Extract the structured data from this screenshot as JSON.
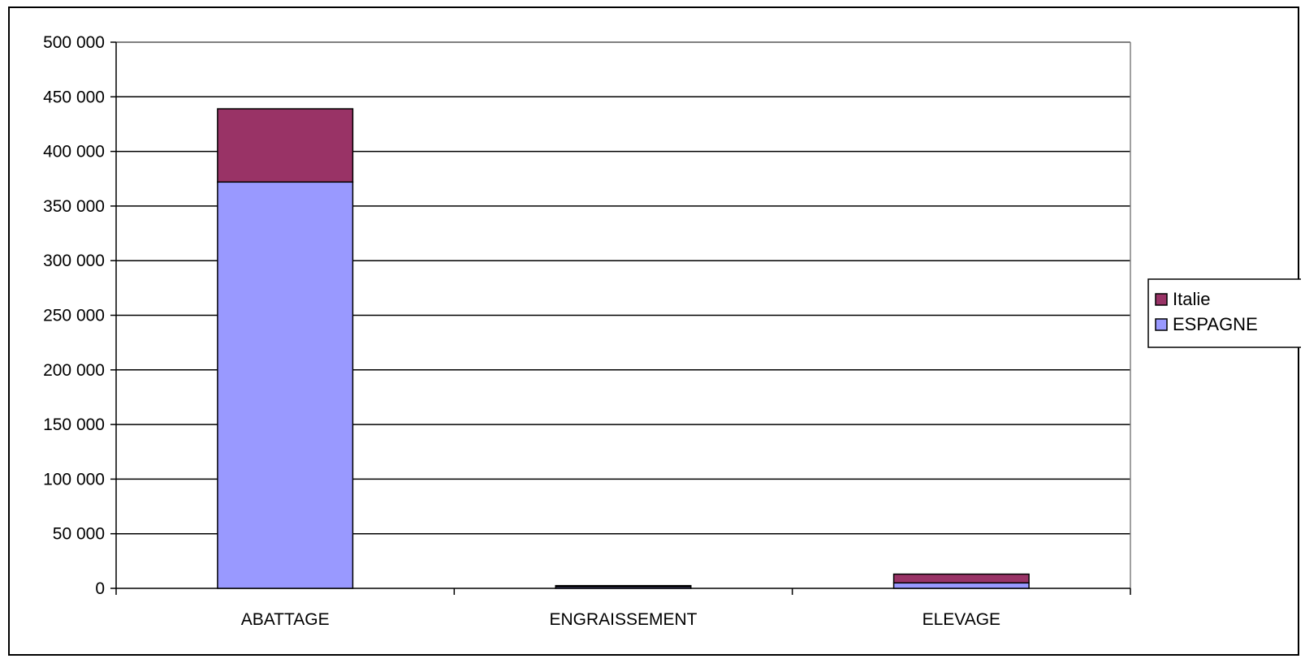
{
  "chart_data": {
    "type": "bar",
    "stacked": true,
    "categories": [
      "ABATTAGE",
      "ENGRAISSEMENT",
      "ELEVAGE"
    ],
    "series": [
      {
        "name": "ESPAGNE",
        "color": "#9999ff",
        "values": [
          372000,
          1500,
          5000
        ]
      },
      {
        "name": "Italie",
        "color": "#993366",
        "values": [
          67000,
          1000,
          8000
        ]
      }
    ],
    "ylim": [
      0,
      500000
    ],
    "yticks": [
      0,
      50000,
      100000,
      150000,
      200000,
      250000,
      300000,
      350000,
      400000,
      450000,
      500000
    ],
    "ytick_labels": [
      "0",
      "50 000",
      "100 000",
      "150 000",
      "200 000",
      "250 000",
      "300 000",
      "350 000",
      "400 000",
      "450 000",
      "500 000"
    ],
    "legend_order": [
      "Italie",
      "ESPAGNE"
    ],
    "legend_position": "right",
    "grid": true,
    "title": "",
    "xlabel": "",
    "ylabel": ""
  }
}
